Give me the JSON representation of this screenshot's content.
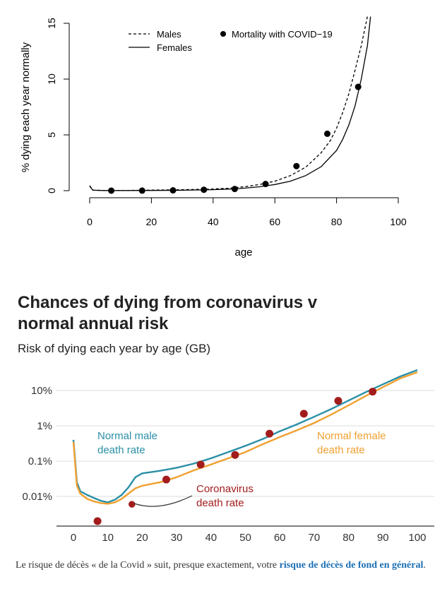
{
  "chart_data": [
    {
      "type": "line",
      "title": "",
      "xlabel": "age",
      "ylabel": "% dying each year normally",
      "xlim": [
        0,
        100
      ],
      "ylim": [
        0,
        15
      ],
      "xticks": [
        "0",
        "20",
        "40",
        "60",
        "80",
        "100"
      ],
      "yticks": [
        "0",
        "5",
        "10",
        "15"
      ],
      "legend": {
        "males": "Males",
        "females": "Females",
        "covid": "Mortality with COVID−19"
      },
      "series": [
        {
          "name": "Males",
          "style": "dashed",
          "x": [
            0,
            1,
            5,
            10,
            20,
            30,
            40,
            45,
            50,
            55,
            60,
            65,
            70,
            75,
            78,
            80,
            82,
            84,
            86,
            88,
            90
          ],
          "y": [
            0.45,
            0.05,
            0.01,
            0.01,
            0.05,
            0.08,
            0.15,
            0.22,
            0.35,
            0.55,
            0.85,
            1.35,
            2.1,
            3.4,
            4.5,
            5.6,
            7.0,
            8.7,
            10.8,
            13.0,
            15.6
          ]
        },
        {
          "name": "Females",
          "style": "solid",
          "x": [
            0,
            1,
            5,
            10,
            20,
            30,
            40,
            45,
            50,
            55,
            60,
            65,
            70,
            75,
            80,
            82,
            84,
            86,
            88,
            90,
            91
          ],
          "y": [
            0.4,
            0.04,
            0.01,
            0.01,
            0.02,
            0.04,
            0.09,
            0.14,
            0.22,
            0.35,
            0.55,
            0.85,
            1.35,
            2.15,
            3.6,
            4.6,
            5.9,
            7.6,
            10.0,
            13.0,
            15.6
          ]
        },
        {
          "name": "Mortality with COVID−19",
          "style": "points",
          "x": [
            7,
            17,
            27,
            37,
            47,
            57,
            67,
            77,
            87
          ],
          "y": [
            0.002,
            0.006,
            0.03,
            0.08,
            0.15,
            0.6,
            2.2,
            5.1,
            9.3
          ]
        }
      ]
    },
    {
      "type": "line",
      "title": "Chances of dying from coronavirus v normal annual risk",
      "subtitle": "Risk of dying each year by age (GB)",
      "xlabel": "",
      "ylabel": "",
      "yscale": "log",
      "xlim": [
        0,
        100
      ],
      "ylim": [
        0.001,
        40
      ],
      "xticks": [
        "0",
        "10",
        "20",
        "30",
        "40",
        "50",
        "60",
        "70",
        "80",
        "90",
        "100"
      ],
      "yticks": [
        "0.01%",
        "0.1%",
        "1%",
        "10%"
      ],
      "annotations": [
        "Normal male death rate",
        "Normal female death rate",
        "Coronavirus death rate"
      ],
      "series": [
        {
          "name": "Normal male death rate",
          "color": "#2a8fa6",
          "x": [
            0,
            1,
            2,
            4,
            6,
            8,
            10,
            12,
            14,
            16,
            18,
            20,
            22,
            25,
            30,
            35,
            40,
            45,
            50,
            55,
            60,
            65,
            70,
            75,
            80,
            85,
            90,
            95,
            100
          ],
          "y": [
            0.4,
            0.025,
            0.014,
            0.011,
            0.009,
            0.0075,
            0.0068,
            0.008,
            0.011,
            0.018,
            0.035,
            0.045,
            0.048,
            0.053,
            0.065,
            0.085,
            0.12,
            0.18,
            0.27,
            0.42,
            0.7,
            1.1,
            1.8,
            3.0,
            5.2,
            9.0,
            15.0,
            25.0,
            38.0
          ]
        },
        {
          "name": "Normal female death rate",
          "color": "#f0a030",
          "x": [
            0,
            1,
            2,
            4,
            6,
            8,
            10,
            12,
            14,
            16,
            18,
            20,
            22,
            25,
            30,
            35,
            40,
            45,
            50,
            55,
            60,
            65,
            70,
            75,
            80,
            85,
            90,
            95,
            100
          ],
          "y": [
            0.35,
            0.02,
            0.012,
            0.0085,
            0.0072,
            0.0065,
            0.0062,
            0.0068,
            0.0085,
            0.012,
            0.017,
            0.02,
            0.022,
            0.025,
            0.035,
            0.055,
            0.08,
            0.12,
            0.18,
            0.3,
            0.48,
            0.75,
            1.2,
            2.1,
            3.8,
            7.0,
            12.5,
            22.0,
            33.0
          ]
        },
        {
          "name": "Coronavirus death rate",
          "color": "#a31c1c",
          "x": [
            7,
            17,
            27,
            37,
            47,
            57,
            67,
            77,
            87
          ],
          "y": [
            0.002,
            0.006,
            0.03,
            0.08,
            0.15,
            0.6,
            2.2,
            5.1,
            9.3
          ]
        }
      ]
    }
  ],
  "caption": {
    "text_before": "Le risque de décès « de la Covid » suit, presque exactement, votre ",
    "link": "risque de décès de fond en général",
    "text_after": "."
  },
  "colors": {
    "male": "#2a8fa6",
    "female": "#f0a030",
    "covid": "#a31c1c"
  }
}
